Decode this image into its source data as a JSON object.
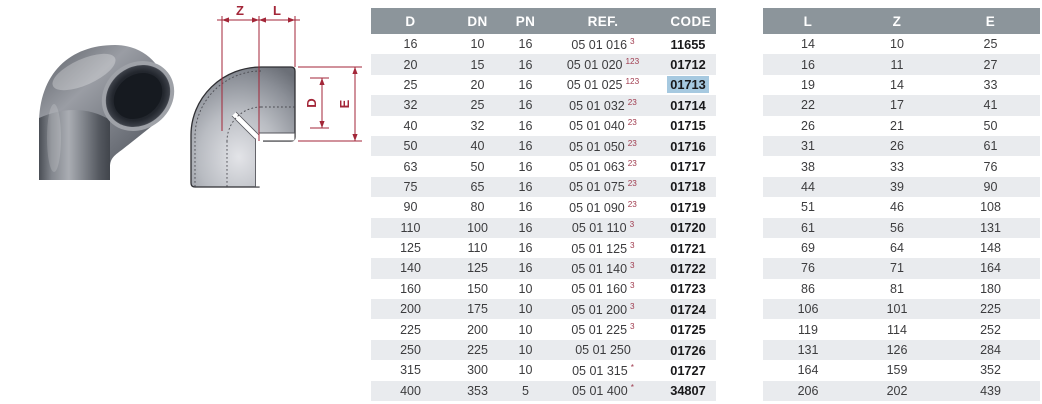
{
  "figure": {
    "photo_name": "pvc-90-degree-elbow-photo",
    "drawing_name": "elbow-dimension-drawing",
    "labels": {
      "z": "Z",
      "l": "L",
      "d": "D",
      "e": "E"
    }
  },
  "main_table": {
    "headers": [
      "D",
      "DN",
      "PN",
      "REF.",
      "CODE"
    ],
    "rows": [
      {
        "d": "16",
        "dn": "10",
        "pn": "16",
        "ref": "05 01 016",
        "sup": "3",
        "code": "11655",
        "highlight": false
      },
      {
        "d": "20",
        "dn": "15",
        "pn": "16",
        "ref": "05 01 020",
        "sup": "123",
        "code": "01712",
        "highlight": false
      },
      {
        "d": "25",
        "dn": "20",
        "pn": "16",
        "ref": "05 01 025",
        "sup": "123",
        "code": "01713",
        "highlight": true
      },
      {
        "d": "32",
        "dn": "25",
        "pn": "16",
        "ref": "05 01 032",
        "sup": "23",
        "code": "01714",
        "highlight": false
      },
      {
        "d": "40",
        "dn": "32",
        "pn": "16",
        "ref": "05 01 040",
        "sup": "23",
        "code": "01715",
        "highlight": false
      },
      {
        "d": "50",
        "dn": "40",
        "pn": "16",
        "ref": "05 01 050",
        "sup": "23",
        "code": "01716",
        "highlight": false
      },
      {
        "d": "63",
        "dn": "50",
        "pn": "16",
        "ref": "05 01 063",
        "sup": "23",
        "code": "01717",
        "highlight": false
      },
      {
        "d": "75",
        "dn": "65",
        "pn": "16",
        "ref": "05 01 075",
        "sup": "23",
        "code": "01718",
        "highlight": false
      },
      {
        "d": "90",
        "dn": "80",
        "pn": "16",
        "ref": "05 01 090",
        "sup": "23",
        "code": "01719",
        "highlight": false
      },
      {
        "d": "110",
        "dn": "100",
        "pn": "16",
        "ref": "05 01 110",
        "sup": "3",
        "code": "01720",
        "highlight": false
      },
      {
        "d": "125",
        "dn": "110",
        "pn": "16",
        "ref": "05 01 125",
        "sup": "3",
        "code": "01721",
        "highlight": false
      },
      {
        "d": "140",
        "dn": "125",
        "pn": "16",
        "ref": "05 01 140",
        "sup": "3",
        "code": "01722",
        "highlight": false
      },
      {
        "d": "160",
        "dn": "150",
        "pn": "10",
        "ref": "05 01 160",
        "sup": "3",
        "code": "01723",
        "highlight": false
      },
      {
        "d": "200",
        "dn": "175",
        "pn": "10",
        "ref": "05 01 200",
        "sup": "3",
        "code": "01724",
        "highlight": false
      },
      {
        "d": "225",
        "dn": "200",
        "pn": "10",
        "ref": "05 01 225",
        "sup": "3",
        "code": "01725",
        "highlight": false
      },
      {
        "d": "250",
        "dn": "225",
        "pn": "10",
        "ref": "05 01 250",
        "sup": "",
        "code": "01726",
        "highlight": false
      },
      {
        "d": "315",
        "dn": "300",
        "pn": "10",
        "ref": "05 01 315",
        "sup": "*",
        "code": "01727",
        "highlight": false
      },
      {
        "d": "400",
        "dn": "353",
        "pn": "5",
        "ref": "05 01 400",
        "sup": "*",
        "code": "34807",
        "highlight": false
      }
    ]
  },
  "dims_table": {
    "headers": [
      "L",
      "Z",
      "E"
    ],
    "rows": [
      [
        "14",
        "10",
        "25"
      ],
      [
        "16",
        "11",
        "27"
      ],
      [
        "19",
        "14",
        "33"
      ],
      [
        "22",
        "17",
        "41"
      ],
      [
        "26",
        "21",
        "50"
      ],
      [
        "31",
        "26",
        "61"
      ],
      [
        "38",
        "33",
        "76"
      ],
      [
        "44",
        "39",
        "90"
      ],
      [
        "51",
        "46",
        "108"
      ],
      [
        "61",
        "56",
        "131"
      ],
      [
        "69",
        "64",
        "148"
      ],
      [
        "76",
        "71",
        "164"
      ],
      [
        "86",
        "81",
        "180"
      ],
      [
        "106",
        "101",
        "225"
      ],
      [
        "119",
        "114",
        "252"
      ],
      [
        "131",
        "126",
        "284"
      ],
      [
        "164",
        "159",
        "352"
      ],
      [
        "206",
        "202",
        "439"
      ]
    ]
  },
  "colors": {
    "header_bg": "#8c959b",
    "stripe_bg": "#e9ebee",
    "code_highlight": "#a6c9e0",
    "ref_superscript": "#a03c4f",
    "dimension_red": "#a32638"
  }
}
